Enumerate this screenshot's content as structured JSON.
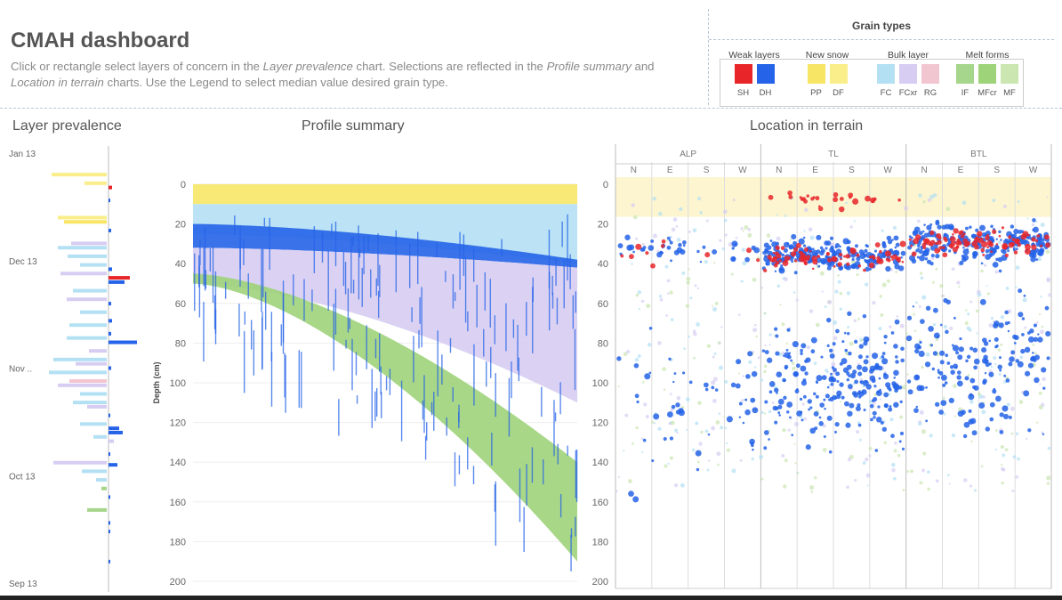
{
  "header": {
    "title": "CMAH dashboard",
    "desc_parts": [
      {
        "text": "Click or rectangle select layers of concern in the ",
        "italic": false
      },
      {
        "text": "Layer prevalence",
        "italic": true
      },
      {
        "text": " chart. Selections are reflected in the ",
        "italic": false
      },
      {
        "text": "Profile summary",
        "italic": true
      },
      {
        "text": " and ",
        "italic": false
      },
      {
        "text": "Location in terrain",
        "italic": true
      },
      {
        "text": " charts. Use the Legend to select median value desired grain type.",
        "italic": false
      }
    ]
  },
  "legend": {
    "title": "Grain types",
    "groups": [
      {
        "name": "Weak layers",
        "items": [
          {
            "code": "SH",
            "color": "#e8262a"
          },
          {
            "code": "DH",
            "color": "#2563e8"
          }
        ]
      },
      {
        "name": "New snow",
        "items": [
          {
            "code": "PP",
            "color": "#f7e566"
          },
          {
            "code": "DF",
            "color": "#f9ee8a"
          }
        ]
      },
      {
        "name": "Bulk layer",
        "items": [
          {
            "code": "FC",
            "color": "#b4e0f4"
          },
          {
            "code": "FCxr",
            "color": "#d7cdf2"
          },
          {
            "code": "RG",
            "color": "#f2c6d0"
          }
        ]
      },
      {
        "name": "Melt forms",
        "items": [
          {
            "code": "IF",
            "color": "#a6d58c"
          },
          {
            "code": "MFcr",
            "color": "#9fd37a"
          },
          {
            "code": "MF",
            "color": "#cbe6b0"
          }
        ]
      }
    ]
  },
  "sections": {
    "layer_prevalence": "Layer prevalence",
    "profile_summary": "Profile summary",
    "location_in_terrain": "Location in terrain"
  },
  "chart_data": [
    {
      "id": "layer_prevalence",
      "type": "bar",
      "orientation": "horizontal",
      "y_ticks": [
        "Jan 13",
        "Dec 13",
        "Nov ..",
        "Oct 13",
        "Sep 13"
      ],
      "bars": [
        {
          "y": 0.05,
          "left": 62,
          "right": 0,
          "color": "#f9ee8a"
        },
        {
          "y": 0.07,
          "left": 25,
          "right": 0,
          "color": "#f9ee8a"
        },
        {
          "y": 0.08,
          "left": 0,
          "right": 4,
          "color": "#e8262a"
        },
        {
          "y": 0.11,
          "left": 0,
          "right": 2,
          "color": "#2563e8"
        },
        {
          "y": 0.15,
          "left": 55,
          "right": 0,
          "color": "#f9ee8a"
        },
        {
          "y": 0.16,
          "left": 48,
          "right": 0,
          "color": "#f7e566"
        },
        {
          "y": 0.18,
          "left": 0,
          "right": 3,
          "color": "#2563e8"
        },
        {
          "y": 0.21,
          "left": 40,
          "right": 0,
          "color": "#d7cdf2"
        },
        {
          "y": 0.22,
          "left": 55,
          "right": 0,
          "color": "#b4e0f4"
        },
        {
          "y": 0.24,
          "left": 44,
          "right": 0,
          "color": "#b4e0f4"
        },
        {
          "y": 0.26,
          "left": 30,
          "right": 0,
          "color": "#b4e0f4"
        },
        {
          "y": 0.27,
          "left": 0,
          "right": 4,
          "color": "#2563e8"
        },
        {
          "y": 0.28,
          "left": 52,
          "right": 0,
          "color": "#d7cdf2"
        },
        {
          "y": 0.29,
          "left": 0,
          "right": 24,
          "color": "#e8262a"
        },
        {
          "y": 0.3,
          "left": 0,
          "right": 18,
          "color": "#2563e8"
        },
        {
          "y": 0.32,
          "left": 38,
          "right": 0,
          "color": "#b4e0f4"
        },
        {
          "y": 0.34,
          "left": 45,
          "right": 0,
          "color": "#d7cdf2"
        },
        {
          "y": 0.35,
          "left": 0,
          "right": 3,
          "color": "#2563e8"
        },
        {
          "y": 0.37,
          "left": 30,
          "right": 0,
          "color": "#b4e0f4"
        },
        {
          "y": 0.39,
          "left": 0,
          "right": 4,
          "color": "#2563e8"
        },
        {
          "y": 0.4,
          "left": 42,
          "right": 0,
          "color": "#b4e0f4"
        },
        {
          "y": 0.42,
          "left": 0,
          "right": 3,
          "color": "#2563e8"
        },
        {
          "y": 0.43,
          "left": 45,
          "right": 0,
          "color": "#b4e0f4"
        },
        {
          "y": 0.44,
          "left": 0,
          "right": 32,
          "color": "#2563e8"
        },
        {
          "y": 0.46,
          "left": 20,
          "right": 0,
          "color": "#d7cdf2"
        },
        {
          "y": 0.48,
          "left": 60,
          "right": 0,
          "color": "#b4e0f4"
        },
        {
          "y": 0.49,
          "left": 35,
          "right": 0,
          "color": "#d7cdf2"
        },
        {
          "y": 0.5,
          "left": 0,
          "right": 3,
          "color": "#2563e8"
        },
        {
          "y": 0.51,
          "left": 65,
          "right": 0,
          "color": "#b4e0f4"
        },
        {
          "y": 0.53,
          "left": 42,
          "right": 0,
          "color": "#f2c6d0"
        },
        {
          "y": 0.54,
          "left": 55,
          "right": 0,
          "color": "#d7cdf2"
        },
        {
          "y": 0.56,
          "left": 30,
          "right": 0,
          "color": "#b4e0f4"
        },
        {
          "y": 0.58,
          "left": 38,
          "right": 0,
          "color": "#b4e0f4"
        },
        {
          "y": 0.59,
          "left": 22,
          "right": 0,
          "color": "#d7cdf2"
        },
        {
          "y": 0.61,
          "left": 0,
          "right": 2,
          "color": "#2563e8"
        },
        {
          "y": 0.63,
          "left": 30,
          "right": 0,
          "color": "#b4e0f4"
        },
        {
          "y": 0.64,
          "left": 0,
          "right": 12,
          "color": "#2563e8"
        },
        {
          "y": 0.65,
          "left": 0,
          "right": 16,
          "color": "#2563e8"
        },
        {
          "y": 0.66,
          "left": 15,
          "right": 0,
          "color": "#b4e0f4"
        },
        {
          "y": 0.67,
          "left": 0,
          "right": 6,
          "color": "#d7cdf2"
        },
        {
          "y": 0.7,
          "left": 0,
          "right": 2,
          "color": "#2563e8"
        },
        {
          "y": 0.72,
          "left": 60,
          "right": 0,
          "color": "#d7cdf2"
        },
        {
          "y": 0.725,
          "left": 0,
          "right": 10,
          "color": "#2563e8"
        },
        {
          "y": 0.74,
          "left": 28,
          "right": 0,
          "color": "#b4e0f4"
        },
        {
          "y": 0.76,
          "left": 12,
          "right": 0,
          "color": "#b4e0f4"
        },
        {
          "y": 0.78,
          "left": 6,
          "right": 0,
          "color": "#a6d58c"
        },
        {
          "y": 0.8,
          "left": 0,
          "right": 2,
          "color": "#2563e8"
        },
        {
          "y": 0.83,
          "left": 22,
          "right": 0,
          "color": "#a6d58c"
        },
        {
          "y": 0.86,
          "left": 0,
          "right": 2,
          "color": "#2563e8"
        },
        {
          "y": 0.88,
          "left": 0,
          "right": 2,
          "color": "#2563e8"
        },
        {
          "y": 0.95,
          "left": 0,
          "right": 2,
          "color": "#2563e8"
        }
      ]
    },
    {
      "id": "profile_summary",
      "type": "area",
      "ylabel": "Depth (cm)",
      "ylim": [
        0,
        200
      ],
      "y_ticks": [
        0,
        20,
        40,
        60,
        80,
        100,
        120,
        140,
        160,
        180,
        200
      ],
      "layers": [
        {
          "grain": "PP",
          "color": "#f7e566",
          "top": 0,
          "bottom_start": 10,
          "bottom_end": 10
        },
        {
          "grain": "FC",
          "color": "#b4e0f4",
          "top_start": 10,
          "top_end": 10,
          "bottom_start": 25,
          "bottom_end": 40
        },
        {
          "grain": "DH",
          "color": "#2563e8",
          "top_start": 20,
          "top_end": 38,
          "bottom_start": 32,
          "bottom_end": 42
        },
        {
          "grain": "FCxr",
          "color": "#d7cdf2",
          "top_start": 32,
          "top_end": 42,
          "bottom_start": 50,
          "bottom_end": 110
        },
        {
          "grain": "MF",
          "color": "#9fd37a",
          "top_start": 45,
          "top_end": 140,
          "bottom_start": 50,
          "bottom_end": 190
        }
      ]
    },
    {
      "id": "location_in_terrain",
      "type": "scatter",
      "ylim": [
        0,
        200
      ],
      "y_ticks": [
        0,
        20,
        40,
        60,
        80,
        100,
        120,
        140,
        160,
        180,
        200
      ],
      "elevation_bands": [
        "ALP",
        "TL",
        "BTL"
      ],
      "aspects": [
        "N",
        "E",
        "S",
        "W"
      ],
      "clusters": [
        {
          "band": "ALP",
          "grain": "DH",
          "color": "#2563e8",
          "depth_center": 32,
          "depth_spread": 6,
          "count": 40
        },
        {
          "band": "ALP",
          "grain": "SH",
          "color": "#e8262a",
          "depth_center": 35,
          "depth_spread": 5,
          "count": 10
        },
        {
          "band": "ALP",
          "grain": "DH",
          "color": "#2563e8",
          "depth_center": 110,
          "depth_spread": 40,
          "count": 50
        },
        {
          "band": "TL",
          "grain": "DH",
          "color": "#2563e8",
          "depth_center": 36,
          "depth_spread": 7,
          "count": 200
        },
        {
          "band": "TL",
          "grain": "SH",
          "color": "#e8262a",
          "depth_center": 37,
          "depth_spread": 5,
          "count": 80
        },
        {
          "band": "TL",
          "grain": "SH",
          "color": "#e8262a",
          "depth_center": 8,
          "depth_spread": 4,
          "count": 25
        },
        {
          "band": "TL",
          "grain": "DH",
          "color": "#2563e8",
          "depth_center": 100,
          "depth_spread": 28,
          "count": 220
        },
        {
          "band": "BTL",
          "grain": "DH",
          "color": "#2563e8",
          "depth_center": 30,
          "depth_spread": 9,
          "count": 220
        },
        {
          "band": "BTL",
          "grain": "SH",
          "color": "#e8262a",
          "depth_center": 29,
          "depth_spread": 6,
          "count": 90
        },
        {
          "band": "BTL",
          "grain": "DH",
          "color": "#2563e8",
          "depth_center": 90,
          "depth_spread": 30,
          "count": 160
        }
      ]
    }
  ]
}
